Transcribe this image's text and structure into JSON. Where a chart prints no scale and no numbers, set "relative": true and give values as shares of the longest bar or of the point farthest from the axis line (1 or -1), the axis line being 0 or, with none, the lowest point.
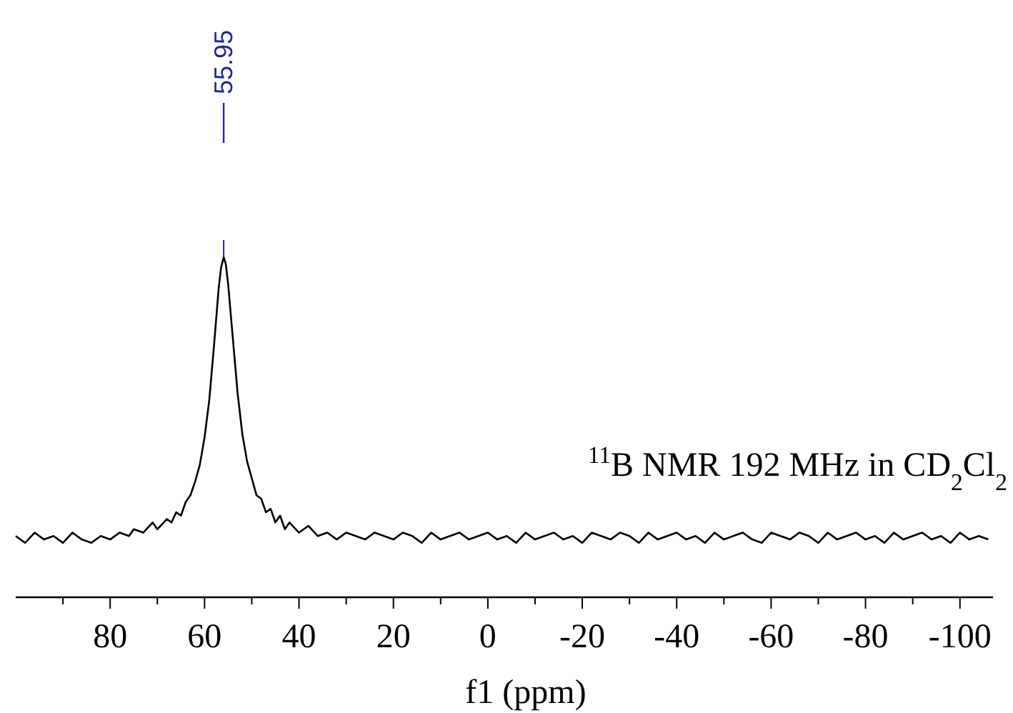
{
  "chart_data": {
    "type": "line",
    "relative": true,
    "xlabel": "f1 (ppm)",
    "xlim": [
      100,
      -107
    ],
    "xticks": [
      {
        "value": 90,
        "label": null
      },
      80,
      {
        "value": 70,
        "label": null
      },
      60,
      {
        "value": 50,
        "label": null
      },
      40,
      {
        "value": 30,
        "label": null
      },
      20,
      {
        "value": 10,
        "label": null
      },
      0,
      {
        "value": -10,
        "label": null
      },
      -20,
      {
        "value": -30,
        "label": null
      },
      -40,
      {
        "value": -50,
        "label": null
      },
      -60,
      {
        "value": -70,
        "label": null
      },
      -80,
      {
        "value": -90,
        "label": null
      },
      -100
    ],
    "x": [
      100,
      98,
      96,
      94,
      92,
      90,
      88,
      86,
      84,
      82,
      80,
      78,
      76,
      75,
      73,
      71,
      70,
      68,
      67,
      66,
      65,
      64,
      63,
      62,
      61,
      60,
      59,
      58,
      57,
      56.5,
      55.95,
      55.5,
      55,
      54,
      53,
      52,
      51,
      50,
      49,
      48,
      47,
      46,
      45,
      44,
      43,
      42,
      40,
      38,
      36,
      34,
      32,
      30,
      28,
      26,
      24,
      22,
      20,
      18,
      16,
      14,
      12,
      10,
      8,
      6,
      4,
      2,
      0,
      -2,
      -4,
      -6,
      -8,
      -10,
      -12,
      -14,
      -16,
      -18,
      -20,
      -22,
      -24,
      -26,
      -28,
      -30,
      -32,
      -34,
      -36,
      -38,
      -40,
      -42,
      -44,
      -46,
      -48,
      -50,
      -52,
      -54,
      -56,
      -58,
      -60,
      -62,
      -64,
      -66,
      -68,
      -70,
      -72,
      -74,
      -76,
      -78,
      -80,
      -82,
      -84,
      -86,
      -88,
      -90,
      -92,
      -94,
      -96,
      -98,
      -100,
      -102,
      -104,
      -106
    ],
    "series": [
      {
        "color": "#000000",
        "values": [
          0.18,
          0.16,
          0.19,
          0.17,
          0.18,
          0.16,
          0.19,
          0.17,
          0.16,
          0.18,
          0.17,
          0.19,
          0.18,
          0.2,
          0.19,
          0.22,
          0.2,
          0.23,
          0.22,
          0.25,
          0.24,
          0.28,
          0.3,
          0.34,
          0.39,
          0.47,
          0.58,
          0.74,
          0.91,
          0.97,
          1,
          0.98,
          0.92,
          0.76,
          0.6,
          0.48,
          0.4,
          0.35,
          0.3,
          0.29,
          0.25,
          0.26,
          0.22,
          0.24,
          0.2,
          0.22,
          0.19,
          0.21,
          0.18,
          0.19,
          0.17,
          0.19,
          0.18,
          0.17,
          0.19,
          0.18,
          0.17,
          0.19,
          0.18,
          0.16,
          0.19,
          0.17,
          0.18,
          0.19,
          0.17,
          0.18,
          0.19,
          0.17,
          0.18,
          0.16,
          0.19,
          0.17,
          0.18,
          0.19,
          0.17,
          0.18,
          0.16,
          0.19,
          0.18,
          0.17,
          0.19,
          0.18,
          0.16,
          0.19,
          0.17,
          0.18,
          0.19,
          0.17,
          0.18,
          0.16,
          0.19,
          0.17,
          0.18,
          0.19,
          0.17,
          0.16,
          0.19,
          0.18,
          0.17,
          0.19,
          0.18,
          0.16,
          0.19,
          0.17,
          0.18,
          0.19,
          0.17,
          0.18,
          0.16,
          0.19,
          0.17,
          0.18,
          0.19,
          0.17,
          0.18,
          0.16,
          0.19,
          0.17,
          0.18,
          0.17
        ]
      }
    ],
    "annotations": [
      "55.95",
      "$^{11}$B NMR 192 MHz in CD$_{2}$Cl$_{2}$"
    ]
  }
}
